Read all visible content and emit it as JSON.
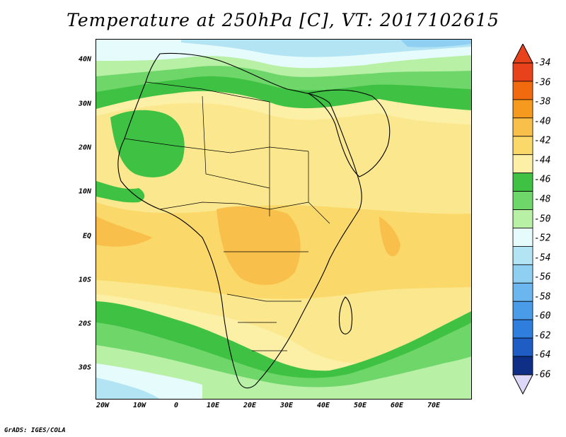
{
  "title": "Temperature at 250hPa [C], VT: 2017102615",
  "footer": "GrADS: IGES/COLA",
  "lat_labels": [
    "40N",
    "30N",
    "20N",
    "10N",
    "EQ",
    "10S",
    "20S",
    "30S"
  ],
  "lon_labels": [
    "20W",
    "10W",
    "0",
    "10E",
    "20E",
    "30E",
    "40E",
    "50E",
    "60E",
    "70E"
  ],
  "colorbar": {
    "labels": [
      "-34",
      "-36",
      "-38",
      "-40",
      "-42",
      "-44",
      "-46",
      "-48",
      "-50",
      "-52",
      "-54",
      "-56",
      "-58",
      "-60",
      "-62",
      "-64",
      "-66"
    ],
    "colors": [
      "#e8421c",
      "#f26a0e",
      "#f59a1e",
      "#f8c04a",
      "#fbd86a",
      "#fcefa6",
      "#3fc244",
      "#6fd66a",
      "#b8f0a6",
      "#e6fbfb",
      "#b2e4f4",
      "#8ecff2",
      "#6cb6ef",
      "#4a9be8",
      "#2f7ddc",
      "#1f5cc4",
      "#0f2f86"
    ],
    "top_arrow": "#e8421c",
    "bottom_arrow": "#ddd8f8"
  }
}
